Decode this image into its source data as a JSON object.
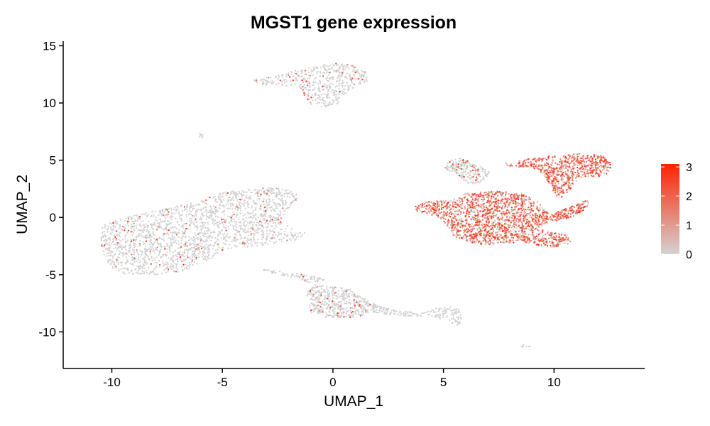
{
  "chart_data": {
    "type": "scatter",
    "title": "MGST1 gene expression",
    "xlabel": "UMAP_1",
    "ylabel": "UMAP_2",
    "xlim": [
      -12.2,
      14.1
    ],
    "ylim": [
      -13.2,
      15.4
    ],
    "x_ticks": [
      -10,
      -5,
      0,
      5,
      10
    ],
    "x_tick_labels": [
      "-10",
      "-5",
      "0",
      "5",
      "10"
    ],
    "y_ticks": [
      -10,
      -5,
      0,
      5,
      10,
      15
    ],
    "y_tick_labels": [
      "-10",
      "-5",
      "0",
      "5",
      "10",
      "15"
    ],
    "grid": false,
    "legend_placement": "right",
    "color_scale": {
      "low_color": "#d3d3d3",
      "high_color": "#ff2200",
      "min": 0,
      "max": 3.1,
      "ticks": [
        0,
        1,
        2,
        3
      ],
      "tick_labels": [
        "0",
        "1",
        "2",
        "3"
      ]
    },
    "clusters": [
      {
        "id": "top",
        "shape": [
          [
            -3.5,
            12.2
          ],
          [
            -2.8,
            12.3
          ],
          [
            -2,
            12.7
          ],
          [
            -0.8,
            13.2
          ],
          [
            0,
            13.5
          ],
          [
            1,
            13.3
          ],
          [
            1.5,
            12.8
          ],
          [
            1.55,
            11.9
          ],
          [
            1,
            11.4
          ],
          [
            0.5,
            10.7
          ],
          [
            0.2,
            9.9
          ],
          [
            -0.3,
            9.6
          ],
          [
            -1,
            9.9
          ],
          [
            -1.4,
            10.8
          ],
          [
            -1.6,
            11.6
          ],
          [
            -2.3,
            11.4
          ],
          [
            -3.2,
            11.6
          ],
          [
            -3.6,
            11.9
          ]
        ],
        "n": 520,
        "expr": [
          0,
          0.08
        ]
      },
      {
        "id": "tiny",
        "shape": [
          [
            -6.1,
            7.3
          ],
          [
            -5.9,
            7.4
          ],
          [
            -5.8,
            7.0
          ],
          [
            -5.9,
            6.8
          ],
          [
            -6.05,
            7.0
          ]
        ],
        "n": 8,
        "expr": [
          0,
          0
        ]
      },
      {
        "id": "left-big",
        "shape": [
          [
            -10.5,
            -1.5
          ],
          [
            -10.4,
            -0.7
          ],
          [
            -10,
            -0.4
          ],
          [
            -9.5,
            -0.1
          ],
          [
            -9,
            0.2
          ],
          [
            -8.3,
            0.5
          ],
          [
            -7.5,
            0.8
          ],
          [
            -6.8,
            1.1
          ],
          [
            -6,
            1.4
          ],
          [
            -5.5,
            1.9
          ],
          [
            -5,
            2.2
          ],
          [
            -4,
            2.4
          ],
          [
            -3,
            2.6
          ],
          [
            -2.1,
            2.5
          ],
          [
            -1.6,
            2.3
          ],
          [
            -1.6,
            1.4
          ],
          [
            -2.2,
            0.4
          ],
          [
            -2.3,
            -0.5
          ],
          [
            -1.2,
            -1.4
          ],
          [
            -1.7,
            -2.0
          ],
          [
            -3,
            -2.4
          ],
          [
            -4,
            -2.6
          ],
          [
            -5,
            -2.9
          ],
          [
            -5.5,
            -3.6
          ],
          [
            -6.2,
            -4.3
          ],
          [
            -7,
            -4.8
          ],
          [
            -8,
            -5.0
          ],
          [
            -9.5,
            -5.0
          ],
          [
            -10,
            -4.6
          ],
          [
            -10.3,
            -3.5
          ],
          [
            -10.5,
            -2.6
          ]
        ],
        "n": 2000,
        "expr": [
          0,
          0.06
        ]
      },
      {
        "id": "bottom-mid",
        "shape": [
          [
            -3.2,
            -4.5
          ],
          [
            -2,
            -4.8
          ],
          [
            -1,
            -5.0
          ],
          [
            -0.3,
            -5.4
          ],
          [
            -0.9,
            -5.9
          ],
          [
            -1.2,
            -6.7
          ],
          [
            -1.1,
            -7.6
          ],
          [
            -1,
            -8.3
          ],
          [
            -0.3,
            -8.7
          ],
          [
            0.6,
            -8.8
          ],
          [
            1.3,
            -8.6
          ],
          [
            1.8,
            -8.2
          ],
          [
            1.9,
            -7.6
          ],
          [
            1.6,
            -7.2
          ],
          [
            1.3,
            -7.0
          ],
          [
            0.8,
            -6.3
          ],
          [
            0.2,
            -6.1
          ],
          [
            -0.8,
            -5.9
          ],
          [
            -1.5,
            -5.4
          ],
          [
            -2.5,
            -5.0
          ],
          [
            -3.3,
            -4.7
          ]
        ],
        "n": 560,
        "expr": [
          0,
          0.1
        ]
      },
      {
        "id": "bottom-tail",
        "shape": [
          [
            1.8,
            -7.6
          ],
          [
            3,
            -8.2
          ],
          [
            4.2,
            -8.3
          ],
          [
            4.6,
            -7.9
          ],
          [
            5.3,
            -7.8
          ],
          [
            5.8,
            -8.1
          ],
          [
            5.8,
            -9.2
          ],
          [
            5.6,
            -9.5
          ],
          [
            5.2,
            -9.0
          ],
          [
            4.5,
            -8.7
          ],
          [
            3,
            -8.6
          ],
          [
            1.8,
            -8.3
          ]
        ],
        "n": 200,
        "expr": [
          0,
          0
        ]
      },
      {
        "id": "small-streak",
        "shape": [
          [
            8.6,
            -11.0
          ],
          [
            8.9,
            -11.0
          ],
          [
            9.0,
            -11.3
          ],
          [
            8.7,
            -11.4
          ],
          [
            8.5,
            -11.3
          ]
        ],
        "n": 10,
        "expr": [
          0,
          0
        ]
      },
      {
        "id": "right-top-grey",
        "shape": [
          [
            5.1,
            4.6
          ],
          [
            5.5,
            5.3
          ],
          [
            5.9,
            5.1
          ],
          [
            6.3,
            4.8
          ],
          [
            6.7,
            4.5
          ],
          [
            7.1,
            4.0
          ],
          [
            6.9,
            3.2
          ],
          [
            6.5,
            2.9
          ],
          [
            6.0,
            3.0
          ],
          [
            5.6,
            3.8
          ],
          [
            5.1,
            4.2
          ]
        ],
        "n": 200,
        "expr": [
          0,
          0.2
        ]
      },
      {
        "id": "right-main",
        "shape": [
          [
            3.7,
            1.0
          ],
          [
            4.3,
            1.4
          ],
          [
            5.3,
            1.5
          ],
          [
            6.0,
            2.1
          ],
          [
            6.8,
            2.3
          ],
          [
            7.6,
            2.3
          ],
          [
            8.6,
            2.1
          ],
          [
            9.3,
            1.3
          ],
          [
            9.7,
            0.5
          ],
          [
            9.8,
            -0.3
          ],
          [
            9.3,
            -1.0
          ],
          [
            9.8,
            -1.3
          ],
          [
            10.6,
            -1.5
          ],
          [
            10.8,
            -2.2
          ],
          [
            10.1,
            -2.6
          ],
          [
            9.3,
            -2.5
          ],
          [
            8.6,
            -2.2
          ],
          [
            7.8,
            -2.2
          ],
          [
            7.1,
            -2.4
          ],
          [
            6.4,
            -2.3
          ],
          [
            5.5,
            -1.7
          ],
          [
            5.2,
            -0.8
          ],
          [
            5.0,
            -0.3
          ],
          [
            4.5,
            0.2
          ],
          [
            3.7,
            0.5
          ]
        ],
        "n": 1900,
        "expr": [
          0.1,
          0.85
        ]
      },
      {
        "id": "right-arm",
        "shape": [
          [
            9.5,
            -0.1
          ],
          [
            10.2,
            0.5
          ],
          [
            11.1,
            1.2
          ],
          [
            11.6,
            1.6
          ],
          [
            11.5,
            0.8
          ],
          [
            10.9,
            0.1
          ],
          [
            10.1,
            -0.3
          ]
        ],
        "n": 180,
        "expr": [
          0.2,
          0.75
        ]
      },
      {
        "id": "right-upper",
        "shape": [
          [
            7.8,
            4.8
          ],
          [
            8.8,
            5.1
          ],
          [
            10,
            5.4
          ],
          [
            11.1,
            5.6
          ],
          [
            12.2,
            5.4
          ],
          [
            12.6,
            4.8
          ],
          [
            12.6,
            4.0
          ],
          [
            12.0,
            3.5
          ],
          [
            11.3,
            3.6
          ],
          [
            10.9,
            3.0
          ],
          [
            10.6,
            2.0
          ],
          [
            10.2,
            1.6
          ],
          [
            9.9,
            2.5
          ],
          [
            9.5,
            3.8
          ],
          [
            9.0,
            4.3
          ],
          [
            7.9,
            4.5
          ]
        ],
        "n": 700,
        "expr": [
          0.15,
          0.9
        ]
      }
    ]
  }
}
